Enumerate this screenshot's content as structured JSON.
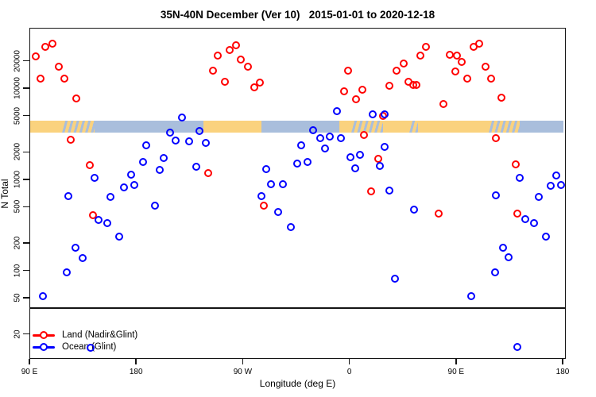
{
  "title": "35N-40N December (Ver 10)   2015-01-01 to 2020-12-18",
  "axes": {
    "x": {
      "label": "Longitude (deg E)",
      "scale": "linear-wrapped",
      "range": [
        90,
        540
      ],
      "ticks": [
        {
          "value": 90,
          "label": "90 E"
        },
        {
          "value": 180,
          "label": "180"
        },
        {
          "value": 270,
          "label": "90 W"
        },
        {
          "value": 360,
          "label": "0"
        },
        {
          "value": 450,
          "label": "90 E"
        },
        {
          "value": 540,
          "label": "180"
        }
      ]
    },
    "y": {
      "label": "N Total",
      "scale": "log",
      "ticks": [
        {
          "value": 20,
          "label": "20"
        },
        {
          "value": 50,
          "label": "50"
        },
        {
          "value": 100,
          "label": "100"
        },
        {
          "value": 200,
          "label": "200"
        },
        {
          "value": 500,
          "label": "500"
        },
        {
          "value": 1000,
          "label": "1000"
        },
        {
          "value": 2000,
          "label": "2000"
        },
        {
          "value": 5000,
          "label": "5000"
        },
        {
          "value": 10000,
          "label": "10000"
        },
        {
          "value": 20000,
          "label": "20000"
        }
      ]
    }
  },
  "reference_line": {
    "n": 40
  },
  "geo_strip": {
    "description": "land-ocean mask band",
    "land_color": "#FAD27E",
    "ocean_color": "#A9BEDC",
    "segments": [
      {
        "from": 90,
        "to": 117,
        "type": "land"
      },
      {
        "from": 117,
        "to": 144,
        "type": "mixed"
      },
      {
        "from": 144,
        "to": 236,
        "type": "ocean"
      },
      {
        "from": 236,
        "to": 285,
        "type": "land"
      },
      {
        "from": 285,
        "to": 351,
        "type": "ocean"
      },
      {
        "from": 351,
        "to": 361,
        "type": "land"
      },
      {
        "from": 361,
        "to": 388,
        "type": "mixed"
      },
      {
        "from": 388,
        "to": 410,
        "type": "land"
      },
      {
        "from": 410,
        "to": 417,
        "type": "mixed"
      },
      {
        "from": 417,
        "to": 477,
        "type": "land"
      },
      {
        "from": 477,
        "to": 503,
        "type": "mixed"
      },
      {
        "from": 503,
        "to": 540,
        "type": "ocean"
      }
    ]
  },
  "legend": {
    "items": [
      {
        "label": "Land (Nadir&Glint)",
        "color": "#FF0000"
      },
      {
        "label": "Ocean (Glint)",
        "color": "#0000FF"
      }
    ]
  },
  "chart_data": {
    "type": "scatter",
    "title": "35N-40N December (Ver 10)   2015-01-01 to 2020-12-18",
    "xlabel": "Longitude (deg E)",
    "ylabel": "N Total",
    "x_range": [
      90,
      540
    ],
    "y_scale": "log",
    "series": [
      {
        "name": "Land (Nadir&Glint)",
        "color": "#FF0000",
        "points": [
          [
            95,
            23000
          ],
          [
            103,
            29000
          ],
          [
            109,
            31500
          ],
          [
            99,
            13000
          ],
          [
            114,
            17500
          ],
          [
            119,
            13000
          ],
          [
            129,
            7900
          ],
          [
            124,
            2800
          ],
          [
            140,
            1450
          ],
          [
            143,
            410
          ],
          [
            240,
            1200
          ],
          [
            287,
            520
          ],
          [
            248,
            23500
          ],
          [
            258,
            26800
          ],
          [
            264,
            30300
          ],
          [
            244,
            16000
          ],
          [
            268,
            21000
          ],
          [
            274,
            17500
          ],
          [
            254,
            12000
          ],
          [
            279,
            10400
          ],
          [
            284,
            11800
          ],
          [
            358,
            16000
          ],
          [
            355,
            9400
          ],
          [
            370,
            9800
          ],
          [
            365,
            7700
          ],
          [
            393,
            10900
          ],
          [
            388,
            5100
          ],
          [
            372,
            3100
          ],
          [
            384,
            1700
          ],
          [
            378,
            750
          ],
          [
            435,
            430
          ],
          [
            501,
            430
          ],
          [
            424,
            29000
          ],
          [
            419,
            23500
          ],
          [
            405,
            19000
          ],
          [
            399,
            16000
          ],
          [
            409,
            12000
          ],
          [
            413,
            11100
          ],
          [
            416,
            11100
          ],
          [
            444,
            24000
          ],
          [
            450,
            23500
          ],
          [
            454,
            19800
          ],
          [
            449,
            15700
          ],
          [
            464,
            29000
          ],
          [
            469,
            31500
          ],
          [
            459,
            13000
          ],
          [
            474,
            17500
          ],
          [
            479,
            13000
          ],
          [
            439,
            6800
          ],
          [
            488,
            8000
          ],
          [
            483,
            2900
          ],
          [
            500,
            1500
          ]
        ]
      },
      {
        "name": "Ocean (Glint)",
        "color": "#0000FF",
        "points": [
          [
            218,
            4900
          ],
          [
            208,
            3300
          ],
          [
            213,
            2700
          ],
          [
            224,
            2650
          ],
          [
            233,
            3450
          ],
          [
            238,
            2550
          ],
          [
            188,
            2400
          ],
          [
            185,
            1580
          ],
          [
            203,
            1740
          ],
          [
            199,
            1290
          ],
          [
            175,
            1150
          ],
          [
            178,
            890
          ],
          [
            169,
            840
          ],
          [
            158,
            660
          ],
          [
            122,
            670
          ],
          [
            144,
            1060
          ],
          [
            195,
            525
          ],
          [
            230,
            1400
          ],
          [
            148,
            365
          ],
          [
            155,
            340
          ],
          [
            165,
            240
          ],
          [
            128,
            180
          ],
          [
            134,
            139
          ],
          [
            121,
            97
          ],
          [
            101,
            53
          ],
          [
            141,
            14.5
          ],
          [
            349,
            5700
          ],
          [
            379,
            5300
          ],
          [
            389,
            5300
          ],
          [
            329,
            3500
          ],
          [
            335,
            2900
          ],
          [
            343,
            3030
          ],
          [
            352,
            2900
          ],
          [
            319,
            2400
          ],
          [
            339,
            2220
          ],
          [
            360,
            1780
          ],
          [
            368,
            1890
          ],
          [
            364,
            1340
          ],
          [
            315,
            1510
          ],
          [
            324,
            1570
          ],
          [
            289,
            1310
          ],
          [
            293,
            900
          ],
          [
            303,
            900
          ],
          [
            285,
            670
          ],
          [
            299,
            447
          ],
          [
            310,
            304
          ],
          [
            385,
            1420
          ],
          [
            389,
            2300
          ],
          [
            393,
            770
          ],
          [
            398,
            83
          ],
          [
            414,
            470
          ],
          [
            503,
            1060
          ],
          [
            534,
            1120
          ],
          [
            529,
            870
          ],
          [
            538,
            880
          ],
          [
            519,
            650
          ],
          [
            483,
            675
          ],
          [
            482,
            97
          ],
          [
            462,
            53
          ],
          [
            508,
            373
          ],
          [
            515,
            340
          ],
          [
            525,
            240
          ],
          [
            489,
            180
          ],
          [
            494,
            142
          ],
          [
            501,
            14.7
          ]
        ]
      }
    ]
  }
}
